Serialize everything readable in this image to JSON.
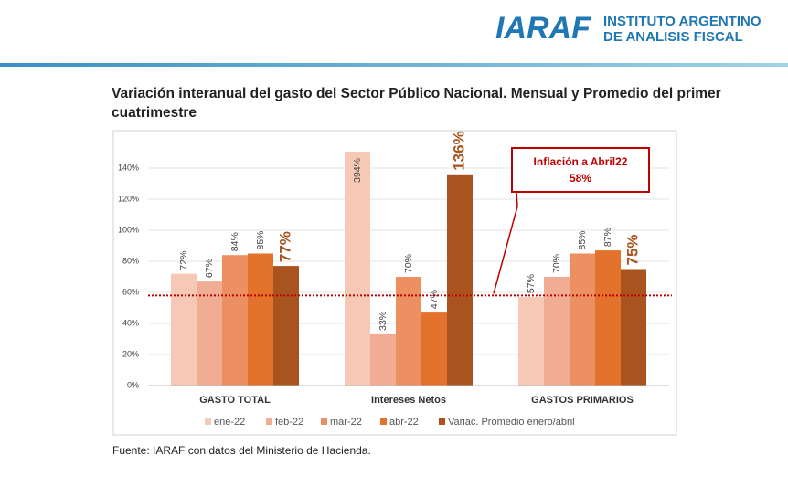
{
  "header": {
    "logo": "IARAF",
    "org_line1": "INSTITUTO ARGENTINO",
    "org_line2": "DE ANALISIS FISCAL"
  },
  "chart_data": {
    "type": "bar",
    "title": "Variación interanual del gasto del Sector Público Nacional. Mensual y Promedio del primer cuatrimestre",
    "categories": [
      "GASTO TOTAL",
      "Intereses Netos",
      "GASTOS PRIMARIOS"
    ],
    "series": [
      {
        "name": "ene-22",
        "color": "#f6c8b6",
        "values": [
          72,
          394,
          57
        ],
        "value_labels": [
          "72%",
          "394%",
          "57%"
        ]
      },
      {
        "name": "feb-22",
        "color": "#f0ad94",
        "values": [
          67,
          33,
          70
        ],
        "value_labels": [
          "67%",
          "33%",
          "70%"
        ]
      },
      {
        "name": "mar-22",
        "color": "#ec9062",
        "values": [
          84,
          70,
          85
        ],
        "value_labels": [
          "84%",
          "70%",
          "85%"
        ]
      },
      {
        "name": "abr-22",
        "color": "#e2722c",
        "values": [
          85,
          47,
          87
        ],
        "value_labels": [
          "85%",
          "47%",
          "87%"
        ]
      },
      {
        "name": "Variac. Promedio enero/abril",
        "color": "#a9541f",
        "values": [
          77,
          136,
          75
        ],
        "value_labels": [
          "77%",
          "136%",
          "75%"
        ]
      }
    ],
    "ylim": [
      0,
      150
    ],
    "yticks": [
      {
        "value": 0,
        "label": "0%"
      },
      {
        "value": 20,
        "label": "20%"
      },
      {
        "value": 40,
        "label": "40%"
      },
      {
        "value": 60,
        "label": "60%"
      },
      {
        "value": 80,
        "label": "80%"
      },
      {
        "value": 100,
        "label": "100%"
      },
      {
        "value": 120,
        "label": "120%"
      },
      {
        "value": 140,
        "label": "140%"
      }
    ],
    "grid": true,
    "legend": "bottom",
    "annotation": {
      "text": "Inflación a Abril22",
      "value": 58,
      "label": "58%",
      "color": "#c00000"
    },
    "source": "Fuente: IARAF con datos del Ministerio de Hacienda."
  }
}
